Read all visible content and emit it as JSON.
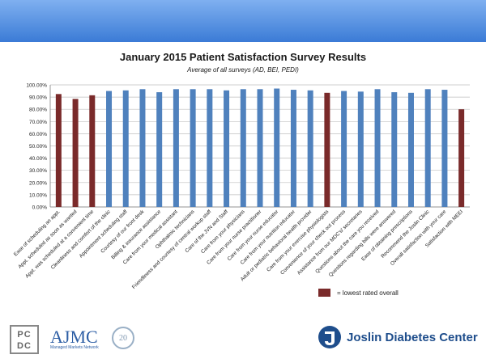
{
  "chart_data": {
    "type": "bar",
    "title": "January 2015 Patient Satisfaction Survey Results",
    "subtitle": "Average of all surveys (AD, BEI, PEDI)",
    "ylim": [
      0,
      100
    ],
    "yticks": [
      "0.00%",
      "10.00%",
      "20.00%",
      "30.00%",
      "40.00%",
      "50.00%",
      "60.00%",
      "70.00%",
      "80.00%",
      "90.00%",
      "100.00%"
    ],
    "categories": [
      "Ease of scheduling an appt.",
      "Appt. scheduled as soon as wanted",
      "Appt. was scheduled at a convenient time",
      "Cleanliness and comfort of the clinic",
      "Appointment scheduling staff",
      "Courtesy of our front desk",
      "Billing & insurance assistance",
      "Care from your medical assistant",
      "Ophthalmic technicians",
      "Friendliness and courtesy of central workup staff",
      "Care of the JVN and Staff",
      "Care from your physicians",
      "Care from your nurse practitioner",
      "Care from your nurse educator",
      "Care from your nutrition educator",
      "Adult or pediatric behavioral health provider",
      "Care from your exercise physiologists",
      "Convenience of your check out process",
      "Assistance from our MDC's/ secretaries",
      "Questions about the care you received",
      "Questions regarding bills were answered",
      "Ease of obtaining prescriptions",
      "Recommend the Joslin Clinic",
      "Overall satisfaction with your care",
      "Satisfaction with MEEI"
    ],
    "values": [
      92.5,
      88.5,
      91.5,
      95,
      95.5,
      96.5,
      94,
      96.5,
      96.5,
      96.5,
      95.5,
      96.5,
      96.5,
      97,
      96,
      95.5,
      93.5,
      95,
      94.5,
      96.5,
      94,
      93.5,
      96.5,
      96,
      80
    ],
    "lowest": [
      true,
      true,
      true,
      false,
      false,
      false,
      false,
      false,
      false,
      false,
      false,
      false,
      false,
      false,
      false,
      false,
      true,
      false,
      false,
      false,
      false,
      false,
      false,
      false,
      true
    ],
    "colors": {
      "normal": "#4f81bd",
      "lowest": "#7a2a2a",
      "grid": "#bfbfbf"
    },
    "legend": {
      "label": "= lowest rated overall",
      "placement": "bottom-right"
    }
  },
  "footer": {
    "pcdc_line1": "PC",
    "pcdc_line2": "DC",
    "ajmc_title": "AJMC",
    "ajmc_tagline": "Managed Markets Network",
    "seal_text": "20",
    "joslin_name": "Joslin Diabetes Center"
  }
}
